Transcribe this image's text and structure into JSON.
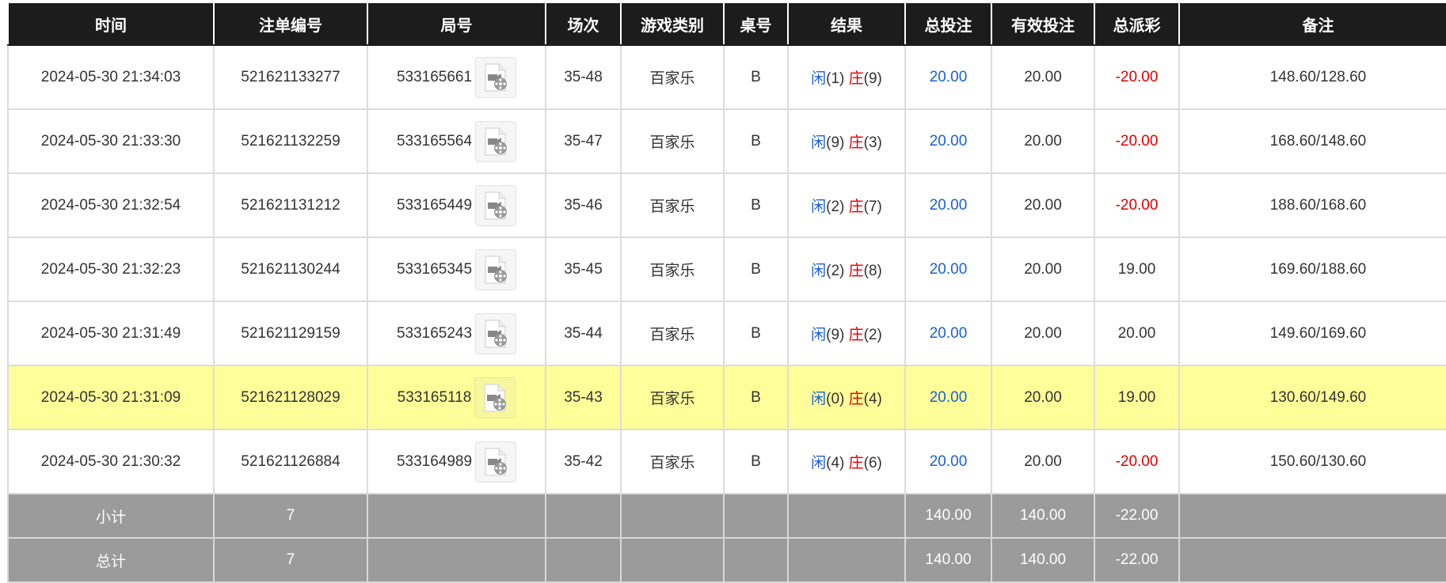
{
  "headers": [
    "时间",
    "注单编号",
    "局号",
    "场次",
    "游戏类别",
    "桌号",
    "结果",
    "总投注",
    "有效投注",
    "总派彩",
    "备注"
  ],
  "rows": [
    {
      "time": "2024-05-30 21:34:03",
      "bet_id": "521621133277",
      "round": "533165661",
      "shoe": "35-48",
      "game": "百家乐",
      "table": "B",
      "player_label": "闲",
      "player": "(1)",
      "banker_label": "庄",
      "banker": "(9)",
      "total_bet": "20.00",
      "valid_bet": "20.00",
      "payout": "-20.00",
      "payout_negative": true,
      "note": "148.60/128.60",
      "highlighted": false
    },
    {
      "time": "2024-05-30 21:33:30",
      "bet_id": "521621132259",
      "round": "533165564",
      "shoe": "35-47",
      "game": "百家乐",
      "table": "B",
      "player_label": "闲",
      "player": "(9)",
      "banker_label": "庄",
      "banker": "(3)",
      "total_bet": "20.00",
      "valid_bet": "20.00",
      "payout": "-20.00",
      "payout_negative": true,
      "note": "168.60/148.60",
      "highlighted": false
    },
    {
      "time": "2024-05-30 21:32:54",
      "bet_id": "521621131212",
      "round": "533165449",
      "shoe": "35-46",
      "game": "百家乐",
      "table": "B",
      "player_label": "闲",
      "player": "(2)",
      "banker_label": "庄",
      "banker": "(7)",
      "total_bet": "20.00",
      "valid_bet": "20.00",
      "payout": "-20.00",
      "payout_negative": true,
      "note": "188.60/168.60",
      "highlighted": false
    },
    {
      "time": "2024-05-30 21:32:23",
      "bet_id": "521621130244",
      "round": "533165345",
      "shoe": "35-45",
      "game": "百家乐",
      "table": "B",
      "player_label": "闲",
      "player": "(2)",
      "banker_label": "庄",
      "banker": "(8)",
      "total_bet": "20.00",
      "valid_bet": "20.00",
      "payout": "19.00",
      "payout_negative": false,
      "note": "169.60/188.60",
      "highlighted": false
    },
    {
      "time": "2024-05-30 21:31:49",
      "bet_id": "521621129159",
      "round": "533165243",
      "shoe": "35-44",
      "game": "百家乐",
      "table": "B",
      "player_label": "闲",
      "player": "(9)",
      "banker_label": "庄",
      "banker": "(2)",
      "total_bet": "20.00",
      "valid_bet": "20.00",
      "payout": "20.00",
      "payout_negative": false,
      "note": "149.60/169.60",
      "highlighted": false
    },
    {
      "time": "2024-05-30 21:31:09",
      "bet_id": "521621128029",
      "round": "533165118",
      "shoe": "35-43",
      "game": "百家乐",
      "table": "B",
      "player_label": "闲",
      "player": "(0)",
      "banker_label": "庄",
      "banker": "(4)",
      "total_bet": "20.00",
      "valid_bet": "20.00",
      "payout": "19.00",
      "payout_negative": false,
      "note": "130.60/149.60",
      "highlighted": true
    },
    {
      "time": "2024-05-30 21:30:32",
      "bet_id": "521621126884",
      "round": "533164989",
      "shoe": "35-42",
      "game": "百家乐",
      "table": "B",
      "player_label": "闲",
      "player": "(4)",
      "banker_label": "庄",
      "banker": "(6)",
      "total_bet": "20.00",
      "valid_bet": "20.00",
      "payout": "-20.00",
      "payout_negative": true,
      "note": "150.60/130.60",
      "highlighted": false
    }
  ],
  "subtotal": {
    "label": "小计",
    "count": "7",
    "total_bet": "140.00",
    "valid_bet": "140.00",
    "payout": "-22.00"
  },
  "grand_total": {
    "label": "总计",
    "count": "7",
    "total_bet": "140.00",
    "valid_bet": "140.00",
    "payout": "-22.00"
  },
  "colors": {
    "header_bg": "#1c1c1c",
    "highlight_row": "#ffff99",
    "summary_bg": "#9b9b9b",
    "player_blue": "#1a5fd6",
    "negative_red": "#e00000"
  },
  "icons": {
    "replay": "video-file-icon"
  }
}
